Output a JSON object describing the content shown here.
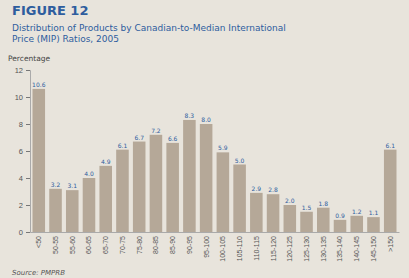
{
  "chart_data": {
    "type": "bar",
    "title": "FIGURE 12",
    "subtitle": "Distribution of Products by Canadian-to-Median International\nPrice (MIP) Ratios, 2005",
    "ylabel": "Percentage",
    "source": "Source: PMPRB",
    "categories": [
      "<50",
      "50-55",
      "55-60",
      "60-65",
      "65-70",
      "70-75",
      "75-80",
      "80-85",
      "85-90",
      "90-95",
      "95-100",
      "100-105",
      "105-110",
      "110-115",
      "115-120",
      "120-125",
      "125-130",
      "130-135",
      "135-140",
      "140-145",
      "145-150",
      ">150"
    ],
    "values": [
      10.6,
      3.2,
      3.1,
      4.0,
      4.9,
      6.1,
      6.7,
      7.2,
      6.6,
      8.3,
      8.0,
      5.9,
      5.0,
      2.9,
      2.8,
      2.0,
      1.5,
      1.8,
      0.9,
      1.2,
      1.1,
      6.1
    ],
    "value_labels": [
      "10.6",
      "3.2",
      "3.1",
      "4.0",
      "4.9",
      "6.1",
      "6.7",
      "7.2",
      "6.6",
      "8.3",
      "8.0",
      "5.9",
      "5.0",
      "2.9",
      "2.8",
      "2.0",
      "1.5",
      "1.8",
      "0.9",
      "1.2",
      "1.1",
      "6.1"
    ],
    "color": "#b5a898",
    "ylim": [
      0,
      12
    ],
    "yticks": [
      0,
      2,
      4,
      6,
      8,
      10,
      12
    ],
    "grid": false,
    "data_labels": true
  }
}
